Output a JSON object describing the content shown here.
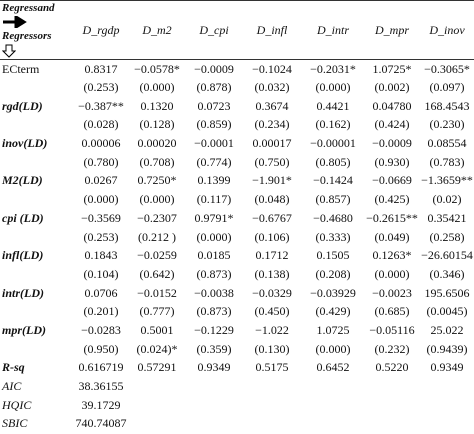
{
  "header": {
    "regressand": "Regressand",
    "regressors": "Regressors",
    "columns": [
      "D_rgdp",
      "D_m2",
      "D_cpi",
      "D_infl",
      "D_intr",
      "D_mpr",
      "D_inov"
    ]
  },
  "rows": [
    {
      "label": "ECterm",
      "values": [
        "0.8317",
        "−0.0578*",
        "−0.0009",
        "−0.1024",
        "−0.2031*",
        "1.0725*",
        "−0.3065*"
      ],
      "se": [
        "(0.253)",
        "(0.000)",
        "(0.878)",
        "(0.032)",
        "(0.000)",
        "(0.002)",
        "(0.097)"
      ]
    },
    {
      "label": "rgd(LD)",
      "values": [
        "−0.387**",
        "0.1320",
        "0.0723",
        "0.3674",
        "0.4421",
        "0.04780",
        "168.4543"
      ],
      "se": [
        "(0.028)",
        "(0.128)",
        "(0.859)",
        "(0.234)",
        "(0.162)",
        "(0.424)",
        "(0.230)"
      ]
    },
    {
      "label": "inov(LD)",
      "values": [
        "0.00006",
        "0.00020",
        "−0.0001",
        "0.00017",
        "−0.00001",
        "−0.0009",
        "0.08554"
      ],
      "se": [
        "(0.780)",
        "(0.708)",
        "(0.774)",
        "(0.750)",
        "(0.805)",
        "(0.930)",
        "(0.783)"
      ]
    },
    {
      "label": "M2(LD)",
      "values": [
        "0.0267",
        "0.7250*",
        "0.1399",
        "−1.901*",
        "−0.1424",
        "−0.0669",
        "−1.3659**"
      ],
      "se": [
        "(0.000)",
        "(0.000)",
        "(0.117)",
        "(0.048)",
        "(0.857)",
        "(0.425)",
        "(0.02)"
      ]
    },
    {
      "label": "cpi (LD)",
      "values": [
        "−0.3569",
        "−0.2307",
        "0.9791*",
        "−0.6767",
        "−0.4680",
        "−0.2615**",
        "0.35421"
      ],
      "se": [
        "(0.253)",
        "(0.212 )",
        "(0.000)",
        "(0.106)",
        "(0.333)",
        "(0.049)",
        "(0.258)"
      ]
    },
    {
      "label": "infl(LD)",
      "values": [
        "0.1843",
        "−0.0259",
        "0.0185",
        "0.1712",
        "0.1505",
        "0.1263*",
        "−26.60154"
      ],
      "se": [
        "(0.104)",
        "(0.642)",
        "(0.873)",
        "(0.138)",
        "(0.208)",
        "(0.000)",
        "(0.346)"
      ]
    },
    {
      "label": "intr(LD)",
      "values": [
        "0.0706",
        "−0.0152",
        "−0.0038",
        "−0.0329",
        "−0.03929",
        "−0.0023",
        "195.6506"
      ],
      "se": [
        "(0.201)",
        "(0.777)",
        "(0.873)",
        "(0.450)",
        "(0.429)",
        "(0.685)",
        "(0.0045)"
      ]
    },
    {
      "label": "mpr(LD)",
      "values": [
        "−0.0283",
        "0.5001",
        "−0.1229",
        "−1.022",
        "1.0725",
        "−0.05116",
        "25.022"
      ],
      "se": [
        "(0.950)",
        "(0.024)*",
        "(0.359)",
        "(0.130)",
        "(0.000)",
        "(0.232)",
        "(0.9439)"
      ]
    }
  ],
  "rsq": {
    "label": "R-sq",
    "values": [
      "0.616719",
      "0.57291",
      "0.9349",
      "0.5175",
      "0.6452",
      "0.5220",
      "0.9349"
    ]
  },
  "criteria": [
    {
      "label": "AIC",
      "value": "38.36155"
    },
    {
      "label": "HQIC",
      "value": "39.1729"
    },
    {
      "label": "SBIC",
      "value": "740.74087"
    }
  ]
}
